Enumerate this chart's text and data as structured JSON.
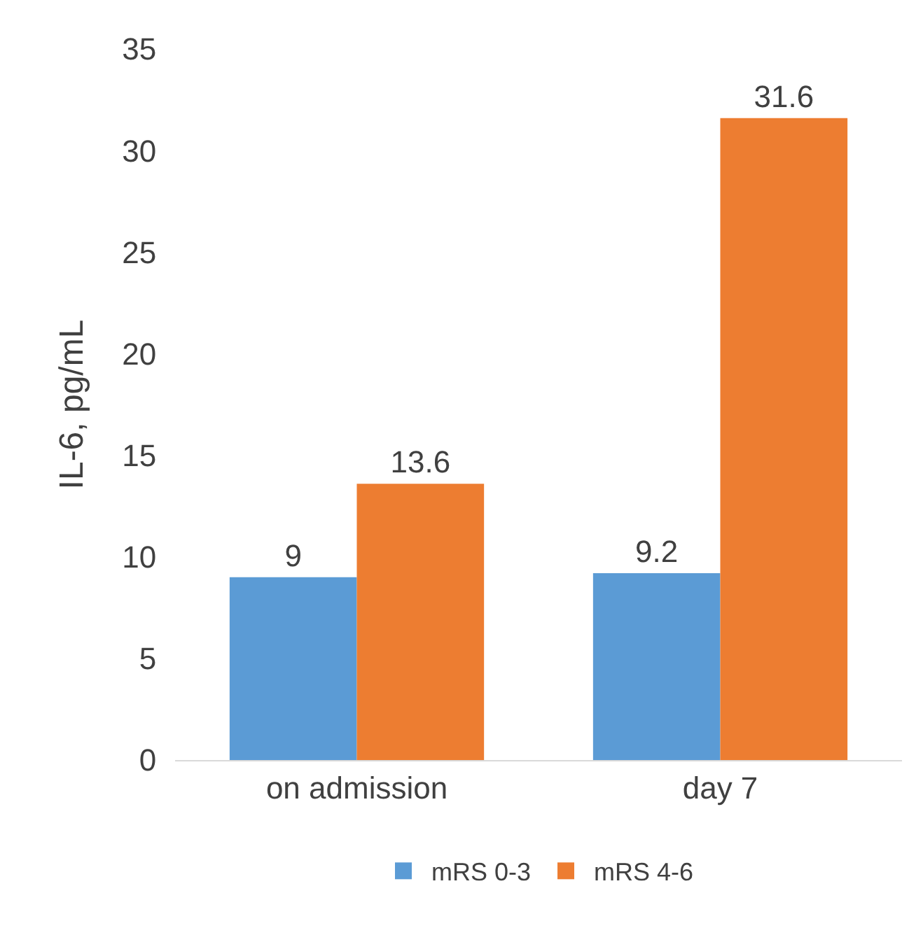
{
  "chart_data": {
    "type": "bar",
    "ylabel": "IL-6, pg/mL",
    "categories": [
      "on admission",
      "day 7"
    ],
    "series": [
      {
        "name": "mRS 0-3",
        "color": "#5b9bd5",
        "values": [
          9,
          9.2
        ]
      },
      {
        "name": "mRS 4-6",
        "color": "#ed7d31",
        "values": [
          13.6,
          31.6
        ]
      }
    ],
    "ylim": [
      0,
      35
    ],
    "yticks": [
      0,
      5,
      10,
      15,
      20,
      25,
      30,
      35
    ],
    "grid": false,
    "legend": "bottom",
    "data_labels": true
  }
}
